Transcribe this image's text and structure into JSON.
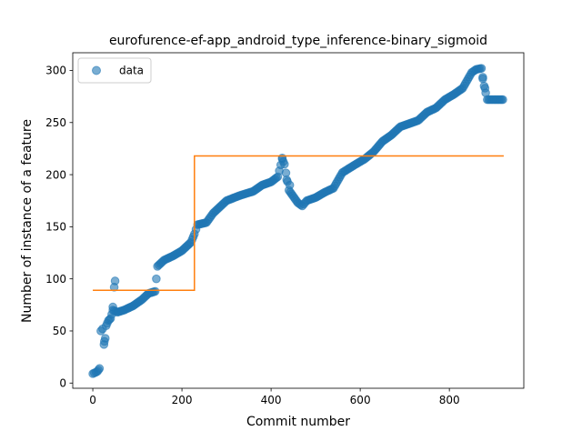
{
  "chart_data": {
    "type": "scatter",
    "title": "eurofurence-ef-app_android_type_inference-binary_sigmoid",
    "xlabel": "Commit number",
    "ylabel": "Number of instance of a feature",
    "xlim": [
      -45,
      967
    ],
    "ylim": [
      -5,
      317
    ],
    "xticks": [
      0,
      200,
      400,
      600,
      800
    ],
    "yticks": [
      0,
      50,
      100,
      150,
      200,
      250,
      300
    ],
    "legend": {
      "placement": "upper-left",
      "entries": [
        "data"
      ]
    },
    "series": [
      {
        "name": "data",
        "kind": "scatter",
        "color": "#1f77b4",
        "anchors": [
          [
            0,
            9
          ],
          [
            10,
            11
          ],
          [
            15,
            14
          ],
          [
            18,
            50
          ],
          [
            22,
            52
          ],
          [
            26,
            40
          ],
          [
            30,
            55
          ],
          [
            35,
            60
          ],
          [
            40,
            62
          ],
          [
            45,
            70
          ],
          [
            55,
            68
          ],
          [
            70,
            70
          ],
          [
            90,
            74
          ],
          [
            110,
            80
          ],
          [
            125,
            86
          ],
          [
            140,
            88
          ],
          [
            145,
            112
          ],
          [
            160,
            118
          ],
          [
            180,
            122
          ],
          [
            200,
            127
          ],
          [
            220,
            135
          ],
          [
            228,
            143
          ],
          [
            235,
            152
          ],
          [
            255,
            154
          ],
          [
            270,
            163
          ],
          [
            300,
            175
          ],
          [
            330,
            180
          ],
          [
            360,
            184
          ],
          [
            380,
            190
          ],
          [
            400,
            193
          ],
          [
            415,
            198
          ],
          [
            425,
            215
          ],
          [
            430,
            210
          ],
          [
            440,
            185
          ],
          [
            460,
            173
          ],
          [
            470,
            170
          ],
          [
            480,
            175
          ],
          [
            500,
            178
          ],
          [
            520,
            183
          ],
          [
            540,
            187
          ],
          [
            560,
            202
          ],
          [
            590,
            210
          ],
          [
            610,
            215
          ],
          [
            630,
            222
          ],
          [
            650,
            232
          ],
          [
            670,
            238
          ],
          [
            690,
            246
          ],
          [
            710,
            249
          ],
          [
            730,
            252
          ],
          [
            750,
            260
          ],
          [
            770,
            264
          ],
          [
            790,
            272
          ],
          [
            810,
            277
          ],
          [
            830,
            283
          ],
          [
            850,
            298
          ],
          [
            860,
            301
          ],
          [
            872,
            302
          ],
          [
            878,
            285
          ],
          [
            885,
            272
          ],
          [
            900,
            272
          ],
          [
            920,
            272
          ]
        ],
        "outliers": [
          [
            25,
            37
          ],
          [
            28,
            43
          ],
          [
            45,
            73
          ],
          [
            48,
            92
          ],
          [
            50,
            98
          ],
          [
            425,
            216
          ],
          [
            435,
            195
          ],
          [
            442,
            190
          ],
          [
            875,
            292
          ],
          [
            880,
            283
          ]
        ]
      },
      {
        "name": "",
        "kind": "step",
        "color": "#ff7f0e",
        "steps": [
          [
            0,
            89
          ],
          [
            228,
            89
          ],
          [
            228,
            218
          ],
          [
            922,
            218
          ]
        ]
      }
    ]
  }
}
